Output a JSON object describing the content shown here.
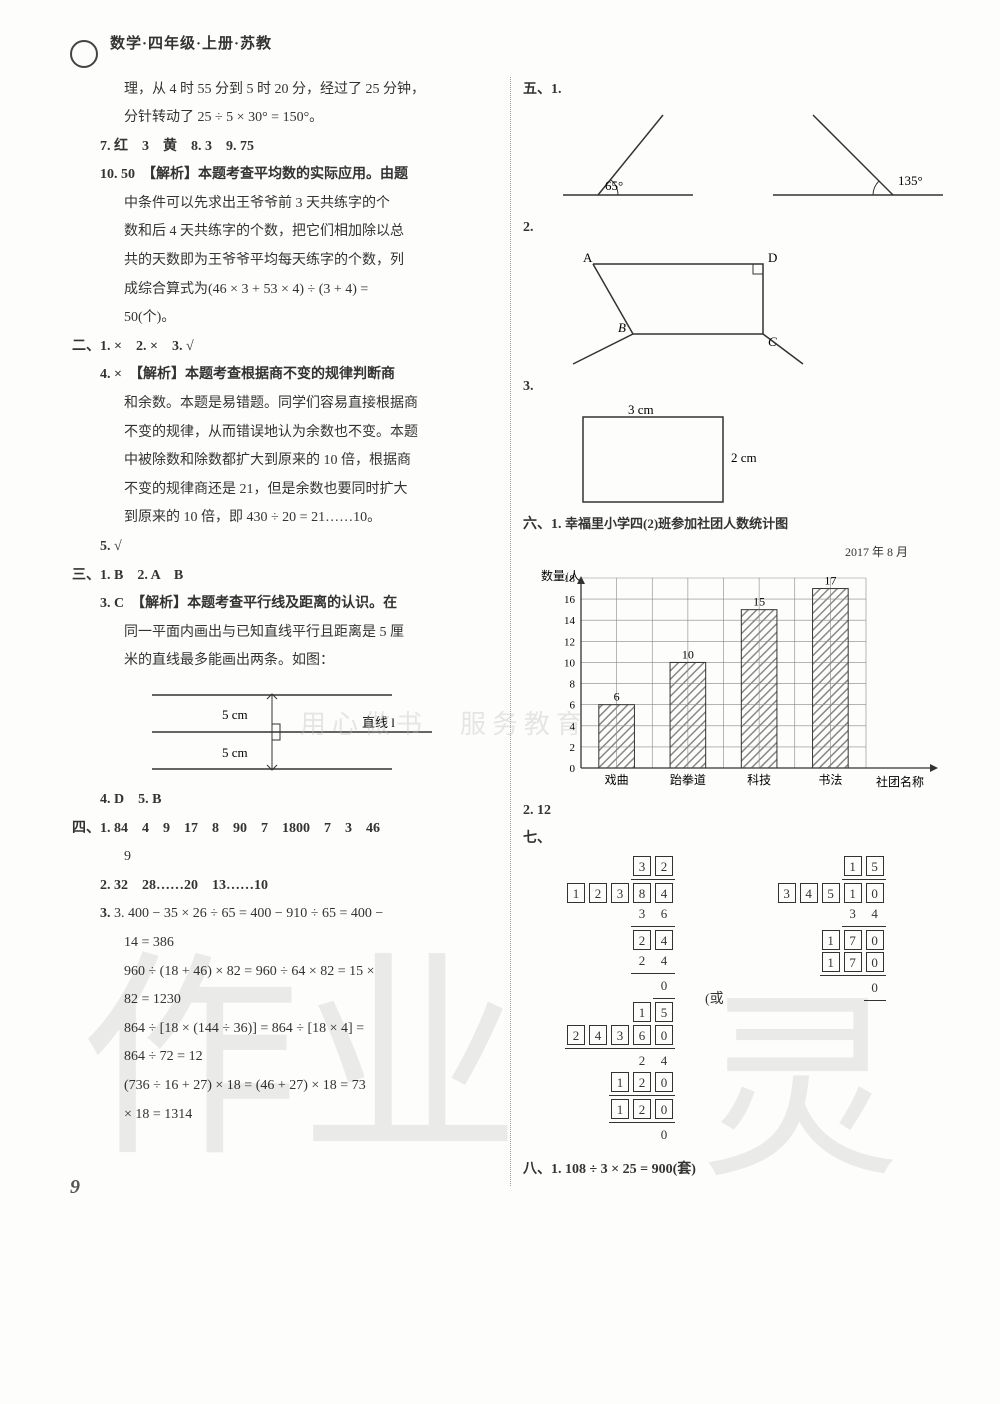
{
  "header": {
    "title": "数学·四年级·上册·苏教"
  },
  "pageNumber": "9",
  "watermark": {
    "left": "作业",
    "right": "灵",
    "center": "用心做书　服务教育"
  },
  "left": {
    "q_intro_a": "理，从 4 时 55 分到 5 时 20 分，经过了 25 分钟，",
    "q_intro_b": "分针转动了 25 ÷ 5 × 30° = 150°。",
    "q7": "7. 红　3　黄　8. 3　9. 75",
    "q10_lead": "10. 50　【解析】本题考查平均数的实际应用。由题",
    "q10_a": "中条件可以先求出王爷爷前 3 天共练字的个",
    "q10_b": "数和后 4 天共练字的个数，把它们相加除以总",
    "q10_c": "共的天数即为王爷爷平均每天练字的个数，列",
    "q10_d": "成综合算式为(46 × 3 + 53 × 4) ÷ (3 + 4) =",
    "q10_e": "50(个)。",
    "sec2_head": "二、1. ×　2. ×　3. √",
    "sec2_q4_lead": "4. ×　【解析】本题考查根据商不变的规律判断商",
    "sec2_q4_a": "和余数。本题是易错题。同学们容易直接根据商",
    "sec2_q4_b": "不变的规律，从而错误地认为余数也不变。本题",
    "sec2_q4_c": "中被除数和除数都扩大到原来的 10 倍，根据商",
    "sec2_q4_d": "不变的规律商还是 21，但是余数也要同时扩大",
    "sec2_q4_e": "到原来的 10 倍，即 430 ÷ 20 = 21……10。",
    "sec2_q5": "5. √",
    "sec3_head": "三、1. B　2. A　B",
    "sec3_q3_lead": "3. C　【解析】本题考查平行线及距离的认识。在",
    "sec3_q3_a": "同一平面内画出与已知直线平行且距离是 5 厘",
    "sec3_q3_b": "米的直线最多能画出两条。如图：",
    "parallel_top": "5 cm",
    "parallel_mid": "直线 l",
    "parallel_bot": "5 cm",
    "sec3_q45": "4. D　5. B",
    "sec4_head": "四、1. 84　4　9　17　8　90　7　1800　7　3　46",
    "sec4_1b": "9",
    "sec4_2": "2. 32　28……20　13……10",
    "sec4_3a": "3. 400 − 35 × 26 ÷ 65 = 400 − 910 ÷ 65 = 400 −",
    "sec4_3b": "14 = 386",
    "sec4_3c": "960 ÷ (18 + 46) × 82 = 960 ÷ 64 × 82 = 15 ×",
    "sec4_3d": "82 = 1230",
    "sec4_3e": "864 ÷ [18 × (144 ÷ 36)] = 864 ÷ [18 × 4] =",
    "sec4_3f": "864 ÷ 72 = 12",
    "sec4_3g": "(736 ÷ 16 + 27) × 18 = (46 + 27) × 18 = 73",
    "sec4_3h": "× 18 = 1314"
  },
  "right": {
    "sec5_label": "五、1.",
    "angle1": "65°",
    "angle2": "135°",
    "sec5_2_label": "2.",
    "sec5_3_label": "3.",
    "pt_A": "A",
    "pt_B": "B",
    "pt_C": "C",
    "pt_D": "D",
    "rect_w": "3 cm",
    "rect_h": "2 cm",
    "sec6_label": "六、1.",
    "chart_title": "幸福里小学四(2)班参加社团人数统计图",
    "chart_date": "2017 年 8 月",
    "y_label": "数量/人",
    "x_label": "社团名称",
    "y_ticks": [
      "0",
      "2",
      "4",
      "6",
      "8",
      "10",
      "12",
      "14",
      "16",
      "18"
    ],
    "categories": [
      "戏曲",
      "跆拳道",
      "科技",
      "书法"
    ],
    "values": [
      6,
      10,
      15,
      17
    ],
    "bar_color": "#888",
    "grid_color": "#888",
    "sec6_2": "2. 12",
    "sec7_label": "七、",
    "sec7_or": "(或",
    "sec8_label": "八、1. 108 ÷ 3 × 25 = 900(套)",
    "divL": {
      "r1": [
        "3",
        "2"
      ],
      "r2": [
        "1",
        "2",
        "3",
        "8",
        "4"
      ],
      "r3": [
        "3",
        "6"
      ],
      "r4": [
        "2",
        "4"
      ],
      "r5": [
        "2",
        "4"
      ],
      "r6": [
        "0"
      ],
      "r7": [
        "1",
        "5"
      ],
      "r8": [
        "2",
        "4",
        "3",
        "6",
        "0"
      ],
      "r9": [
        "2",
        "4"
      ],
      "r10": [
        "1",
        "2",
        "0"
      ],
      "r11": [
        "1",
        "2",
        "0"
      ],
      "r12": [
        "0"
      ]
    },
    "divR": {
      "r1": [
        "1",
        "5"
      ],
      "r2": [
        "3",
        "4",
        "5",
        "1",
        "0"
      ],
      "r3": [
        "3",
        "4"
      ],
      "r4": [
        "1",
        "7",
        "0"
      ],
      "r5": [
        "1",
        "7",
        "0"
      ],
      "r6": [
        "0"
      ]
    }
  }
}
